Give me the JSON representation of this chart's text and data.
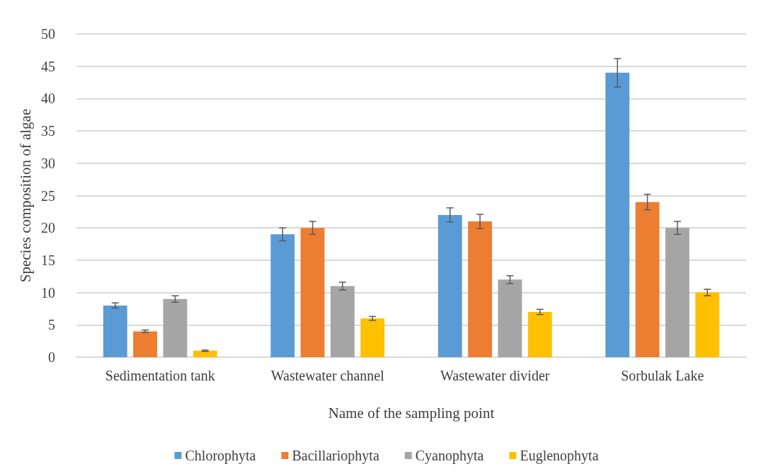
{
  "chart_data": {
    "type": "bar",
    "xlabel": "Name of the sampling point",
    "ylabel": "Species composition of algae",
    "categories": [
      "Sedimentation tank",
      "Wastewater channel",
      "Wastewater divider",
      "Sorbulak Lake"
    ],
    "series": [
      {
        "name": "Chlorophyta",
        "color": "#5b9bd5",
        "values": [
          8,
          19,
          22,
          44
        ],
        "errors": [
          0.4,
          1,
          1.1,
          2.2
        ]
      },
      {
        "name": "Bacillariophyta",
        "color": "#ed7d31",
        "values": [
          4,
          20,
          21,
          24
        ],
        "errors": [
          0.2,
          1,
          1.1,
          1.2
        ]
      },
      {
        "name": "Cyanophyta",
        "color": "#a5a5a5",
        "values": [
          9,
          11,
          12,
          20
        ],
        "errors": [
          0.5,
          0.6,
          0.6,
          1
        ]
      },
      {
        "name": "Euglenophyta",
        "color": "#ffc000",
        "values": [
          1,
          6,
          7,
          10
        ],
        "errors": [
          0.1,
          0.3,
          0.4,
          0.5
        ]
      }
    ],
    "ylim": [
      0,
      50
    ],
    "yticks": [
      0,
      5,
      10,
      15,
      20,
      25,
      30,
      35,
      40,
      45,
      50
    ],
    "grid": "y",
    "legend": "bottom"
  }
}
